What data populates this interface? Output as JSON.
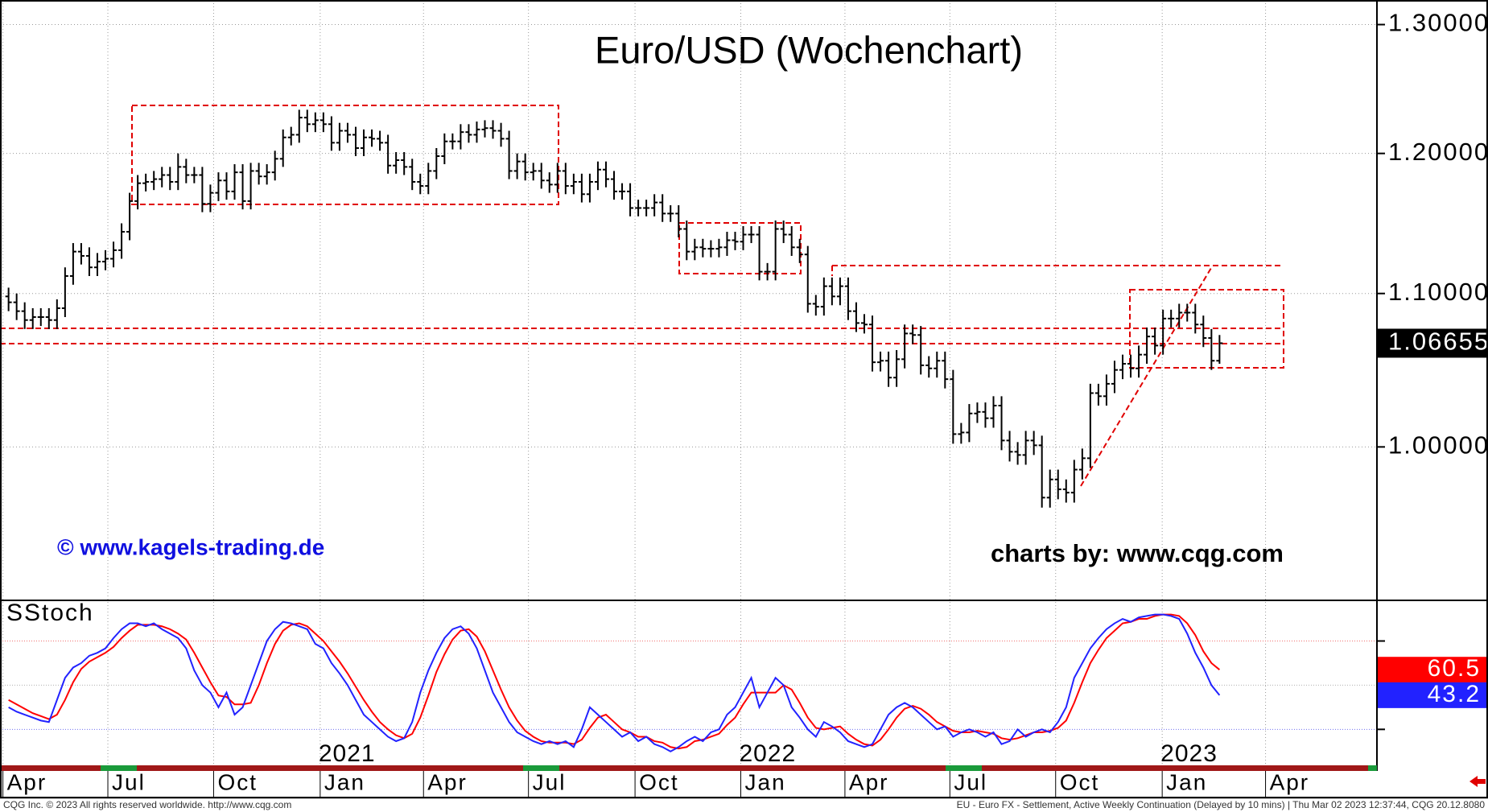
{
  "chart_data": [
    {
      "type": "ohlc",
      "title": "Euro/USD (Wochenchart)",
      "annotations": [
        "© www.kagels-trading.de",
        "charts by: www.cqg.com"
      ],
      "color": "#000000",
      "log": true,
      "grid": true,
      "xlim": [
        -1.06,
        169.5
      ],
      "xticks": [
        {
          "value": -0.7,
          "label": "Apr"
        },
        {
          "value": 12.3,
          "label": "Jul"
        },
        {
          "value": 25.4,
          "label": "Oct"
        },
        {
          "value": 38.6,
          "label": "Jan"
        },
        {
          "value": 51.4,
          "label": "Apr"
        },
        {
          "value": 64.4,
          "label": "Jul"
        },
        {
          "value": 77.6,
          "label": "Oct"
        },
        {
          "value": 90.7,
          "label": "Jan"
        },
        {
          "value": 103.6,
          "label": "Apr"
        },
        {
          "value": 116.6,
          "label": "Jul"
        },
        {
          "value": 129.7,
          "label": "Oct"
        },
        {
          "value": 142.9,
          "label": "Jan"
        },
        {
          "value": 155.7,
          "label": "Apr"
        }
      ],
      "year_ticks": [
        {
          "value": 38.6,
          "label": "2021"
        },
        {
          "value": 90.7,
          "label": "2022"
        },
        {
          "value": 142.9,
          "label": "2023"
        }
      ],
      "ylim": [
        0.91,
        1.32
      ],
      "yticks": [
        {
          "value": 1.3,
          "label": "1.30000"
        },
        {
          "value": 1.2,
          "label": "1.20000"
        },
        {
          "value": 1.1,
          "label": "1.10000"
        },
        {
          "value": 1.0,
          "label": "1.00000"
        }
      ],
      "open": [
        1.098,
        1.094,
        1.088,
        1.082,
        1.084,
        1.084,
        1.082,
        1.09,
        1.112,
        1.129,
        1.126,
        1.118,
        1.122,
        1.124,
        1.13,
        1.143,
        1.165,
        1.178,
        1.179,
        1.181,
        1.184,
        1.179,
        1.19,
        1.184,
        1.184,
        1.163,
        1.171,
        1.18,
        1.172,
        1.186,
        1.165,
        1.187,
        1.183,
        1.186,
        1.196,
        1.212,
        1.214,
        1.227,
        1.222,
        1.225,
        1.222,
        1.208,
        1.217,
        1.214,
        1.204,
        1.212,
        1.211,
        1.208,
        1.191,
        1.195,
        1.19,
        1.179,
        1.176,
        1.187,
        1.198,
        1.209,
        1.209,
        1.216,
        1.214,
        1.218,
        1.219,
        1.217,
        1.211,
        1.187,
        1.194,
        1.186,
        1.187,
        1.18,
        1.177,
        1.187,
        1.176,
        1.179,
        1.17,
        1.179,
        1.188,
        1.181,
        1.172,
        1.172,
        1.16,
        1.16,
        1.16,
        1.164,
        1.156,
        1.156,
        1.145,
        1.129,
        1.132,
        1.131,
        1.131,
        1.132,
        1.137,
        1.136,
        1.141,
        1.141,
        1.115,
        1.115,
        1.145,
        1.141,
        1.132,
        1.127,
        1.093,
        1.091,
        1.105,
        1.098,
        1.105,
        1.088,
        1.08,
        1.079,
        1.054,
        1.055,
        1.044,
        1.056,
        1.073,
        1.072,
        1.052,
        1.05,
        1.055,
        1.043,
        1.008,
        1.009,
        1.021,
        1.022,
        1.018,
        1.026,
        1.004,
        0.997,
        0.995,
        1.004,
        1.001,
        0.969,
        0.98,
        0.974,
        0.972,
        0.986,
        0.993,
        1.034,
        1.032,
        1.04,
        1.049,
        1.053,
        1.05,
        1.059,
        1.071,
        1.065,
        1.083,
        1.083,
        1.087,
        1.087,
        1.079,
        1.07,
        1.055
      ],
      "high": [
        1.104,
        1.1,
        1.094,
        1.09,
        1.09,
        1.09,
        1.096,
        1.118,
        1.135,
        1.135,
        1.132,
        1.128,
        1.13,
        1.136,
        1.149,
        1.171,
        1.184,
        1.185,
        1.187,
        1.19,
        1.19,
        1.2,
        1.196,
        1.19,
        1.19,
        1.177,
        1.186,
        1.186,
        1.192,
        1.192,
        1.193,
        1.193,
        1.192,
        1.202,
        1.218,
        1.22,
        1.233,
        1.233,
        1.231,
        1.231,
        1.228,
        1.223,
        1.223,
        1.22,
        1.218,
        1.218,
        1.217,
        1.214,
        1.201,
        1.201,
        1.196,
        1.185,
        1.193,
        1.204,
        1.215,
        1.215,
        1.222,
        1.222,
        1.224,
        1.225,
        1.225,
        1.223,
        1.217,
        1.2,
        1.2,
        1.193,
        1.193,
        1.186,
        1.193,
        1.193,
        1.185,
        1.185,
        1.185,
        1.194,
        1.194,
        1.187,
        1.178,
        1.178,
        1.166,
        1.166,
        1.17,
        1.17,
        1.162,
        1.162,
        1.151,
        1.138,
        1.138,
        1.137,
        1.138,
        1.143,
        1.143,
        1.147,
        1.147,
        1.147,
        1.121,
        1.151,
        1.151,
        1.147,
        1.138,
        1.133,
        1.099,
        1.111,
        1.111,
        1.111,
        1.111,
        1.094,
        1.086,
        1.085,
        1.061,
        1.061,
        1.062,
        1.079,
        1.079,
        1.078,
        1.058,
        1.061,
        1.061,
        1.049,
        1.015,
        1.027,
        1.028,
        1.028,
        1.032,
        1.032,
        1.01,
        1.003,
        1.01,
        1.01,
        1.007,
        0.986,
        0.986,
        0.98,
        0.992,
        0.999,
        1.04,
        1.04,
        1.046,
        1.055,
        1.059,
        1.059,
        1.065,
        1.077,
        1.077,
        1.089,
        1.089,
        1.093,
        1.093,
        1.093,
        1.085,
        1.076,
        1.072
      ],
      "low": [
        1.088,
        1.082,
        1.076,
        1.076,
        1.078,
        1.076,
        1.076,
        1.084,
        1.106,
        1.12,
        1.112,
        1.112,
        1.116,
        1.118,
        1.124,
        1.137,
        1.159,
        1.172,
        1.173,
        1.175,
        1.173,
        1.173,
        1.178,
        1.178,
        1.157,
        1.157,
        1.165,
        1.166,
        1.166,
        1.159,
        1.159,
        1.177,
        1.177,
        1.18,
        1.19,
        1.206,
        1.208,
        1.216,
        1.216,
        1.216,
        1.202,
        1.202,
        1.208,
        1.198,
        1.198,
        1.205,
        1.202,
        1.185,
        1.185,
        1.184,
        1.173,
        1.17,
        1.17,
        1.181,
        1.192,
        1.203,
        1.203,
        1.208,
        1.208,
        1.212,
        1.211,
        1.205,
        1.181,
        1.181,
        1.18,
        1.18,
        1.174,
        1.171,
        1.171,
        1.17,
        1.17,
        1.164,
        1.164,
        1.173,
        1.175,
        1.166,
        1.166,
        1.154,
        1.154,
        1.154,
        1.154,
        1.15,
        1.15,
        1.139,
        1.123,
        1.123,
        1.125,
        1.125,
        1.125,
        1.126,
        1.13,
        1.13,
        1.135,
        1.109,
        1.109,
        1.109,
        1.135,
        1.126,
        1.121,
        1.087,
        1.085,
        1.085,
        1.092,
        1.092,
        1.082,
        1.074,
        1.073,
        1.048,
        1.048,
        1.038,
        1.038,
        1.05,
        1.066,
        1.046,
        1.044,
        1.044,
        1.037,
        1.002,
        1.002,
        1.003,
        1.015,
        1.012,
        1.012,
        0.998,
        0.991,
        0.989,
        0.989,
        0.995,
        0.963,
        0.963,
        0.968,
        0.966,
        0.966,
        0.98,
        0.987,
        1.026,
        1.026,
        1.034,
        1.043,
        1.044,
        1.044,
        1.053,
        1.059,
        1.059,
        1.077,
        1.077,
        1.081,
        1.073,
        1.064,
        1.049,
        1.053
      ],
      "close": [
        1.094,
        1.088,
        1.082,
        1.084,
        1.084,
        1.082,
        1.09,
        1.112,
        1.129,
        1.126,
        1.118,
        1.122,
        1.124,
        1.13,
        1.143,
        1.165,
        1.178,
        1.179,
        1.181,
        1.184,
        1.179,
        1.19,
        1.184,
        1.184,
        1.163,
        1.171,
        1.18,
        1.172,
        1.186,
        1.165,
        1.187,
        1.183,
        1.186,
        1.196,
        1.212,
        1.214,
        1.227,
        1.222,
        1.225,
        1.222,
        1.208,
        1.217,
        1.214,
        1.204,
        1.212,
        1.211,
        1.208,
        1.191,
        1.195,
        1.19,
        1.179,
        1.176,
        1.187,
        1.198,
        1.209,
        1.209,
        1.216,
        1.214,
        1.218,
        1.219,
        1.217,
        1.211,
        1.187,
        1.194,
        1.186,
        1.187,
        1.18,
        1.177,
        1.187,
        1.176,
        1.179,
        1.17,
        1.179,
        1.188,
        1.181,
        1.172,
        1.172,
        1.16,
        1.16,
        1.16,
        1.164,
        1.156,
        1.156,
        1.145,
        1.129,
        1.132,
        1.131,
        1.131,
        1.132,
        1.137,
        1.136,
        1.141,
        1.141,
        1.115,
        1.115,
        1.145,
        1.141,
        1.132,
        1.127,
        1.093,
        1.091,
        1.105,
        1.098,
        1.105,
        1.088,
        1.08,
        1.079,
        1.054,
        1.055,
        1.044,
        1.056,
        1.073,
        1.072,
        1.052,
        1.05,
        1.055,
        1.043,
        1.008,
        1.009,
        1.021,
        1.022,
        1.018,
        1.026,
        1.004,
        0.997,
        0.995,
        1.004,
        1.001,
        0.969,
        0.98,
        0.974,
        0.972,
        0.986,
        0.993,
        1.034,
        1.032,
        1.04,
        1.049,
        1.053,
        1.05,
        1.059,
        1.071,
        1.065,
        1.083,
        1.083,
        1.087,
        1.087,
        1.079,
        1.07,
        1.055,
        1.06655
      ]
    },
    {
      "type": "line",
      "title": "SStoch",
      "xlim": [
        -1.06,
        169.5
      ],
      "ylim": [
        -5.5,
        107.6
      ],
      "levels": [
        {
          "value": 80,
          "color": "#f07070"
        },
        {
          "value": 50,
          "color": "#b0b0b0"
        },
        {
          "value": 20,
          "color": "#7070f0"
        }
      ],
      "series": [
        {
          "color": "#ff0000",
          "values": [
            40,
            37,
            34,
            31,
            29,
            27,
            30,
            40,
            52,
            61,
            66,
            69,
            72,
            76,
            82,
            87,
            91,
            91,
            91,
            90,
            88,
            85,
            81,
            72,
            62,
            52,
            43,
            42,
            37,
            37,
            38,
            50,
            65,
            78,
            87,
            91,
            92,
            90,
            85,
            80,
            73,
            66,
            58,
            49,
            40,
            32,
            25,
            20,
            16,
            14,
            17,
            28,
            43,
            59,
            71,
            81,
            87,
            88,
            83,
            73,
            60,
            47,
            35,
            26,
            19,
            15,
            12,
            11,
            11,
            11,
            10,
            13,
            21,
            28,
            30,
            25,
            20,
            18,
            15,
            15,
            12,
            11,
            8,
            7,
            8,
            12,
            13,
            15,
            17,
            23,
            28,
            37,
            45,
            45,
            45,
            45,
            50,
            47,
            38,
            28,
            21,
            20,
            21,
            22,
            17,
            13,
            10,
            9,
            13,
            20,
            28,
            34,
            36,
            34,
            30,
            25,
            22,
            19,
            18,
            18,
            19,
            18,
            17,
            14,
            13,
            14,
            16,
            18,
            18,
            19,
            21,
            26,
            38,
            52,
            65,
            74,
            82,
            87,
            92,
            93,
            95,
            95,
            97,
            98,
            98,
            97,
            92,
            84,
            73,
            65,
            60.5
          ]
        },
        {
          "color": "#2222ff",
          "values": [
            35,
            32,
            30,
            28,
            26,
            25,
            40,
            55,
            62,
            65,
            70,
            72,
            75,
            82,
            88,
            92,
            92,
            90,
            92,
            88,
            85,
            82,
            75,
            60,
            50,
            45,
            35,
            45,
            30,
            35,
            50,
            65,
            80,
            88,
            93,
            92,
            90,
            88,
            78,
            75,
            65,
            58,
            50,
            40,
            30,
            25,
            20,
            15,
            12,
            14,
            25,
            45,
            60,
            72,
            82,
            88,
            90,
            85,
            75,
            60,
            45,
            35,
            25,
            18,
            15,
            12,
            10,
            12,
            10,
            12,
            8,
            20,
            35,
            30,
            25,
            20,
            15,
            18,
            12,
            15,
            10,
            8,
            5,
            8,
            12,
            15,
            12,
            18,
            20,
            30,
            35,
            45,
            55,
            35,
            45,
            55,
            50,
            35,
            28,
            20,
            15,
            25,
            22,
            18,
            12,
            10,
            8,
            10,
            20,
            30,
            35,
            38,
            35,
            30,
            25,
            20,
            22,
            15,
            18,
            20,
            18,
            15,
            18,
            10,
            12,
            20,
            15,
            18,
            20,
            18,
            25,
            35,
            55,
            65,
            75,
            82,
            88,
            92,
            95,
            93,
            96,
            97,
            98,
            98,
            97,
            95,
            85,
            72,
            62,
            50,
            43.2
          ]
        }
      ]
    }
  ],
  "footer": {
    "left": "CQG Inc. © 2023 All rights reserved worldwide. http://www.cqg.com",
    "right": "EU - Euro FX - Settlement, Active Weekly Continuation (Delayed by 10 mins) | Thu Mar 02 2023 12:37:44, CQG 20.12.8080"
  }
}
